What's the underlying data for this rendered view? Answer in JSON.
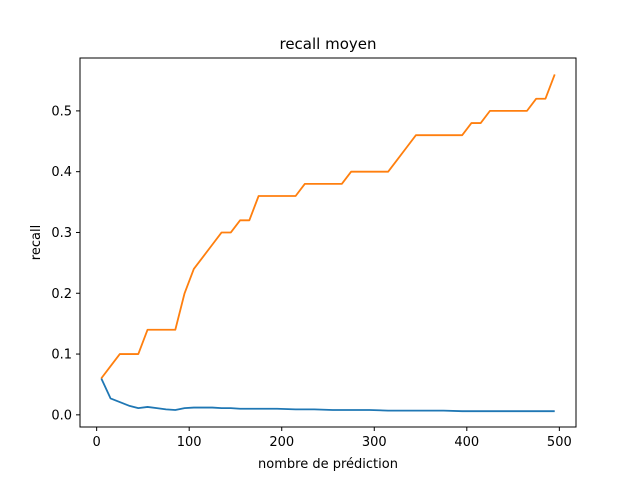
{
  "chart_data": {
    "type": "line",
    "title": "recall moyen",
    "xlabel": "nombre de prédiction",
    "ylabel": "recall",
    "xlim": [
      -18,
      518
    ],
    "ylim": [
      -0.02,
      0.587
    ],
    "x_ticks": [
      0,
      100,
      200,
      300,
      400,
      500
    ],
    "y_ticks": [
      0.0,
      0.1,
      0.2,
      0.3,
      0.4,
      0.5
    ],
    "y_tick_labels": [
      "0.0",
      "0.1",
      "0.2",
      "0.3",
      "0.4",
      "0.5"
    ],
    "grid": false,
    "series": [
      {
        "color": "#1f77b4",
        "points": [
          [
            5,
            0.06
          ],
          [
            15,
            0.027
          ],
          [
            25,
            0.021
          ],
          [
            35,
            0.015
          ],
          [
            45,
            0.011
          ],
          [
            55,
            0.013
          ],
          [
            65,
            0.011
          ],
          [
            75,
            0.009
          ],
          [
            85,
            0.008
          ],
          [
            95,
            0.011
          ],
          [
            105,
            0.012
          ],
          [
            115,
            0.012
          ],
          [
            125,
            0.012
          ],
          [
            135,
            0.011
          ],
          [
            145,
            0.011
          ],
          [
            155,
            0.01
          ],
          [
            165,
            0.01
          ],
          [
            175,
            0.01
          ],
          [
            185,
            0.01
          ],
          [
            195,
            0.01
          ],
          [
            215,
            0.009
          ],
          [
            235,
            0.009
          ],
          [
            255,
            0.008
          ],
          [
            275,
            0.008
          ],
          [
            295,
            0.008
          ],
          [
            315,
            0.007
          ],
          [
            335,
            0.007
          ],
          [
            355,
            0.007
          ],
          [
            375,
            0.007
          ],
          [
            395,
            0.006
          ],
          [
            415,
            0.006
          ],
          [
            435,
            0.006
          ],
          [
            455,
            0.006
          ],
          [
            475,
            0.006
          ],
          [
            495,
            0.006
          ]
        ]
      },
      {
        "color": "#ff7f0e",
        "points": [
          [
            5,
            0.06
          ],
          [
            15,
            0.08
          ],
          [
            25,
            0.1
          ],
          [
            35,
            0.1
          ],
          [
            45,
            0.1
          ],
          [
            55,
            0.14
          ],
          [
            65,
            0.14
          ],
          [
            75,
            0.14
          ],
          [
            85,
            0.14
          ],
          [
            95,
            0.2
          ],
          [
            105,
            0.24
          ],
          [
            115,
            0.26
          ],
          [
            125,
            0.28
          ],
          [
            135,
            0.3
          ],
          [
            145,
            0.3
          ],
          [
            155,
            0.32
          ],
          [
            165,
            0.32
          ],
          [
            175,
            0.36
          ],
          [
            185,
            0.36
          ],
          [
            195,
            0.36
          ],
          [
            205,
            0.36
          ],
          [
            215,
            0.36
          ],
          [
            225,
            0.38
          ],
          [
            235,
            0.38
          ],
          [
            245,
            0.38
          ],
          [
            255,
            0.38
          ],
          [
            265,
            0.38
          ],
          [
            275,
            0.4
          ],
          [
            285,
            0.4
          ],
          [
            295,
            0.4
          ],
          [
            305,
            0.4
          ],
          [
            315,
            0.4
          ],
          [
            325,
            0.42
          ],
          [
            335,
            0.44
          ],
          [
            345,
            0.46
          ],
          [
            355,
            0.46
          ],
          [
            365,
            0.46
          ],
          [
            375,
            0.46
          ],
          [
            385,
            0.46
          ],
          [
            395,
            0.46
          ],
          [
            405,
            0.48
          ],
          [
            415,
            0.48
          ],
          [
            425,
            0.5
          ],
          [
            435,
            0.5
          ],
          [
            445,
            0.5
          ],
          [
            455,
            0.5
          ],
          [
            465,
            0.5
          ],
          [
            475,
            0.52
          ],
          [
            485,
            0.52
          ],
          [
            495,
            0.56
          ]
        ]
      }
    ]
  }
}
